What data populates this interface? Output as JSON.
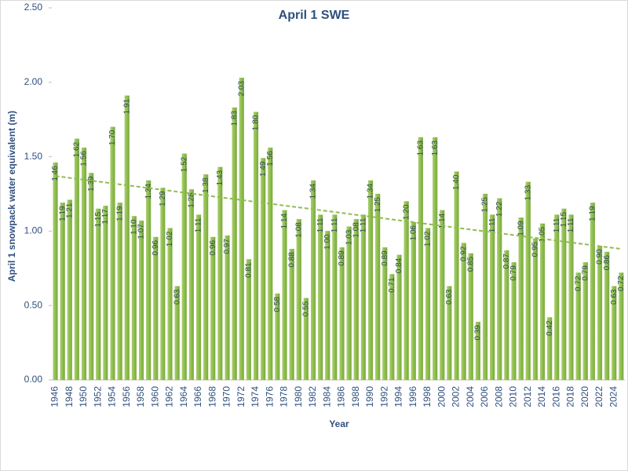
{
  "chart_data": {
    "type": "bar",
    "title": "April 1 SWE",
    "x_label": "Year",
    "y_label": "April 1 snowpack water equivalent (m)",
    "color": "#8fbd4f",
    "categories": [
      "1946",
      null,
      "1948",
      null,
      "1950",
      null,
      "1952",
      null,
      "1954",
      null,
      "1956",
      null,
      "1958",
      null,
      "1960",
      null,
      "1962",
      null,
      "1964",
      null,
      "1966",
      null,
      "1968",
      null,
      "1970",
      null,
      "1972",
      null,
      "1974",
      null,
      "1976",
      null,
      "1978",
      null,
      "1980",
      null,
      "1982",
      null,
      "1984",
      null,
      "1986",
      null,
      "1988",
      null,
      "1990",
      null,
      "1992",
      null,
      "1994",
      null,
      "1996",
      null,
      "1998",
      null,
      "2000",
      null,
      "2002",
      null,
      "2004",
      null,
      "2006",
      null,
      "2008",
      null,
      "2010",
      null,
      "2012",
      null,
      "2014",
      null,
      "2016",
      null,
      "2018",
      null,
      "2020",
      null,
      "2022",
      null,
      "2024",
      null
    ],
    "values": [
      1.46,
      1.19,
      1.21,
      1.62,
      1.56,
      1.39,
      1.15,
      1.17,
      1.7,
      1.19,
      1.91,
      1.1,
      1.07,
      1.34,
      0.96,
      1.29,
      1.02,
      0.63,
      1.52,
      1.28,
      1.11,
      1.38,
      0.96,
      1.43,
      0.97,
      1.83,
      2.03,
      0.81,
      1.8,
      1.49,
      1.56,
      0.58,
      1.14,
      0.88,
      1.08,
      0.55,
      1.34,
      1.11,
      1.0,
      1.11,
      0.89,
      1.03,
      1.08,
      1.11,
      1.34,
      1.25,
      0.89,
      0.71,
      0.84,
      1.2,
      1.06,
      1.63,
      1.02,
      1.63,
      1.14,
      0.63,
      1.4,
      0.92,
      0.85,
      0.39,
      1.25,
      1.11,
      1.22,
      0.87,
      0.79,
      1.09,
      1.33,
      0.95,
      1.05,
      0.42,
      1.11,
      1.15,
      1.11,
      0.72,
      0.79,
      1.19,
      0.9,
      0.86,
      0.63,
      0.72
    ],
    "value_labels": [
      "1.46",
      "1.19",
      "1.21",
      "1.62",
      "1.56",
      "1.39",
      "1.15",
      "1.17",
      "1.70",
      "1.19",
      "1.91",
      "1.10",
      "1.07",
      "1.34",
      "0.96",
      "1.29",
      "1.02",
      "0.63",
      "1.52",
      "1.28",
      "1.11",
      "1.38",
      "0.96",
      "1.43",
      "0.97",
      "1.83",
      "2.03",
      "0.81",
      "1.80",
      "1.49",
      "1.56",
      "0.58",
      "1.14",
      "0.88",
      "1.08",
      "0.55",
      "1.34",
      "1.11",
      "1.00",
      "1.11",
      "0.89",
      "1.03",
      "1.08",
      "1.11",
      "1.34",
      "1.25",
      "0.89",
      "0.71",
      "0.84",
      "1.20",
      "1.06",
      "1.63",
      "1.02",
      "1.63",
      "1.14",
      "0.63",
      "1.40",
      "0.92",
      "0.85",
      "0.39",
      "1.25",
      "1.11",
      "1.22",
      "0.87",
      "0.79",
      "1.09",
      "1.33",
      "0.95",
      "1.05",
      "0.42",
      "1.11",
      "1.15",
      "1.11",
      "0.72",
      "0.79",
      "1.19",
      "0.90",
      "0.86",
      "0.63",
      "0.72"
    ],
    "trendline": {
      "color": "#8fbd4f",
      "values": [
        1.37,
        0.88
      ]
    },
    "ylim": [
      0,
      2.5
    ],
    "yticks": [
      {
        "value": 0,
        "label": "0.00"
      },
      {
        "value": 0.5,
        "label": "0.50"
      },
      {
        "value": 1,
        "label": "1.00"
      },
      {
        "value": 1.5,
        "label": "1.50"
      },
      {
        "value": 2,
        "label": "2.00"
      },
      {
        "value": 2.5,
        "label": "2.50"
      }
    ],
    "grid": false
  }
}
